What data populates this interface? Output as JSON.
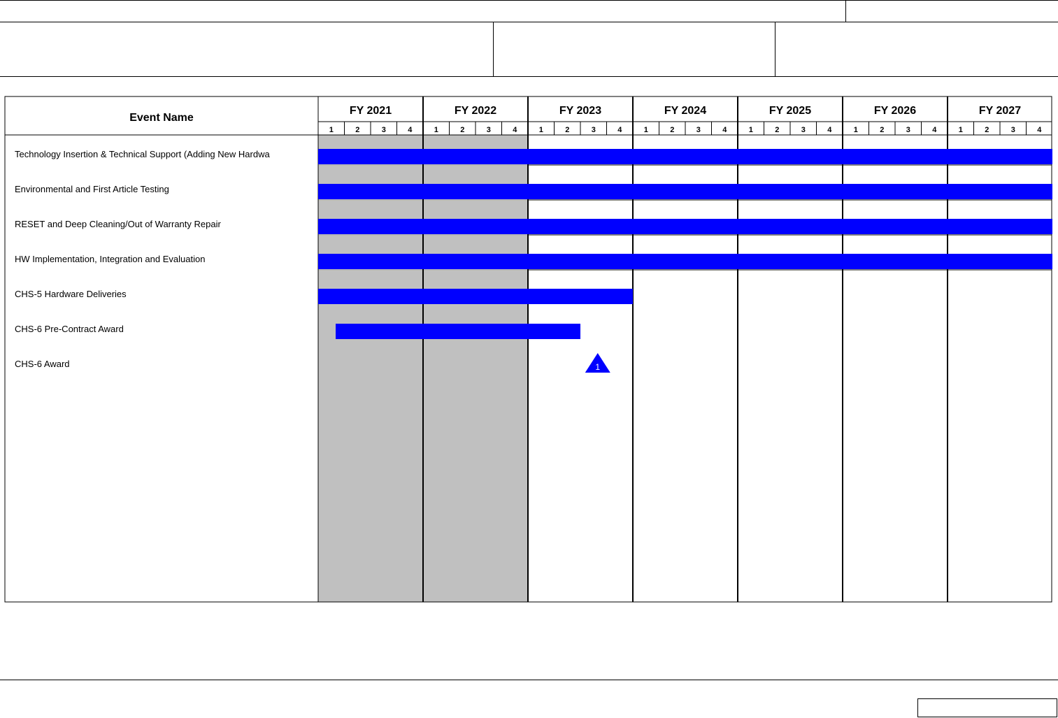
{
  "chart_data": {
    "type": "gantt",
    "label_header": "Event Name",
    "fiscal_years": [
      "FY 2021",
      "FY 2022",
      "FY 2023",
      "FY 2024",
      "FY 2025",
      "FY 2026",
      "FY 2027"
    ],
    "quarters": [
      "1",
      "2",
      "3",
      "4"
    ],
    "shaded_years": [
      "FY 2021",
      "FY 2022"
    ],
    "colors": {
      "bar": "#0000ff",
      "shade": "#c0c0c0",
      "grid": "#000000"
    },
    "events": [
      {
        "name": "Technology Insertion & Technical Support (Adding New Hardwa",
        "start": "FY 2021 Q1",
        "end": "FY 2027 Q4",
        "bar_rows_to": "FY 2027 Q4"
      },
      {
        "name": "Environmental and First Article Testing",
        "start": "FY 2021 Q1",
        "end": "FY 2027 Q4"
      },
      {
        "name": "RESET and Deep Cleaning/Out of Warranty Repair",
        "start": "FY 2021 Q1",
        "end": "FY 2027 Q4"
      },
      {
        "name": "HW Implementation, Integration and Evaluation",
        "start": "FY 2021 Q1",
        "end": "FY 2027 Q4"
      },
      {
        "name": "CHS-5 Hardware Deliveries",
        "start": "FY 2021 Q1",
        "end": "FY 2023 Q4"
      },
      {
        "name": "CHS-6 Pre-Contract Award",
        "start": "FY 2021 Q1",
        "end": "FY 2023 Q3"
      },
      {
        "name": "CHS-6 Award",
        "milestone": "FY 2023 Q3",
        "marker_label": "1"
      }
    ]
  }
}
